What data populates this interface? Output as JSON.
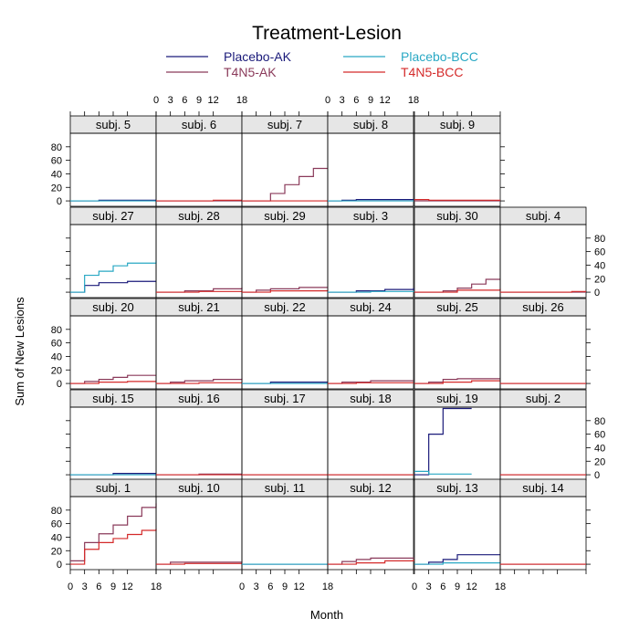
{
  "chart_data": {
    "type": "line",
    "title": "Treatment-Lesion",
    "xlabel": "Month",
    "ylabel": "Sum of New Lesions",
    "xlim": [
      0,
      18
    ],
    "ylim": [
      -8,
      100
    ],
    "xticks": [
      0,
      3,
      6,
      9,
      12,
      18
    ],
    "xtick_labels": [
      "0",
      "3",
      "6",
      "9",
      "12",
      "18"
    ],
    "yticks": [
      0,
      20,
      40,
      60,
      80
    ],
    "ytick_labels": [
      "0",
      "20",
      "40",
      "60",
      "80"
    ],
    "legend": [
      {
        "name": "Placebo-AK",
        "color": "#1a1a7a"
      },
      {
        "name": "Placebo-BCC",
        "color": "#29a8c4"
      },
      {
        "name": "T4N5-AK",
        "color": "#8a3a5a"
      },
      {
        "name": "T4N5-BCC",
        "color": "#d42a2a"
      }
    ],
    "step_lines": true,
    "panels": [
      {
        "label": "subj. 5",
        "series": [
          {
            "name": "Placebo-AK",
            "x": [
              0,
              6,
              18
            ],
            "y": [
              0,
              1,
              1
            ]
          },
          {
            "name": "Placebo-BCC",
            "x": [
              0,
              18
            ],
            "y": [
              0,
              0
            ]
          }
        ]
      },
      {
        "label": "subj. 6",
        "series": [
          {
            "name": "T4N5-AK",
            "x": [
              0,
              18
            ],
            "y": [
              0,
              0
            ]
          },
          {
            "name": "T4N5-BCC",
            "x": [
              0,
              12,
              18
            ],
            "y": [
              0,
              1,
              1
            ]
          }
        ]
      },
      {
        "label": "subj. 7",
        "series": [
          {
            "name": "T4N5-AK",
            "x": [
              0,
              6,
              9,
              12,
              15,
              18
            ],
            "y": [
              0,
              11,
              24,
              36,
              48,
              48
            ]
          },
          {
            "name": "T4N5-BCC",
            "x": [
              0,
              18
            ],
            "y": [
              0,
              0
            ]
          }
        ]
      },
      {
        "label": "subj. 8",
        "series": [
          {
            "name": "Placebo-AK",
            "x": [
              0,
              3,
              6,
              18
            ],
            "y": [
              0,
              1,
              2,
              2
            ]
          },
          {
            "name": "Placebo-BCC",
            "x": [
              0,
              18
            ],
            "y": [
              0,
              0
            ]
          }
        ]
      },
      {
        "label": "subj. 9",
        "series": [
          {
            "name": "T4N5-AK",
            "x": [
              0,
              18
            ],
            "y": [
              0,
              0
            ]
          },
          {
            "name": "T4N5-BCC",
            "x": [
              0,
              3,
              18
            ],
            "y": [
              2,
              1,
              1
            ]
          }
        ]
      },
      {
        "label": "subj. 27",
        "series": [
          {
            "name": "Placebo-AK",
            "x": [
              0,
              3,
              6,
              12,
              18
            ],
            "y": [
              0,
              10,
              14,
              16,
              16
            ]
          },
          {
            "name": "Placebo-BCC",
            "x": [
              0,
              3,
              6,
              9,
              12,
              18
            ],
            "y": [
              0,
              25,
              31,
              39,
              43,
              47
            ]
          }
        ]
      },
      {
        "label": "subj. 28",
        "series": [
          {
            "name": "T4N5-AK",
            "x": [
              0,
              6,
              12,
              18
            ],
            "y": [
              0,
              2,
              5,
              7
            ]
          },
          {
            "name": "T4N5-BCC",
            "x": [
              0,
              9,
              18
            ],
            "y": [
              0,
              1,
              3
            ]
          }
        ]
      },
      {
        "label": "subj. 29",
        "series": [
          {
            "name": "T4N5-AK",
            "x": [
              0,
              3,
              6,
              12,
              18
            ],
            "y": [
              0,
              3,
              5,
              7,
              7
            ]
          },
          {
            "name": "T4N5-BCC",
            "x": [
              0,
              6,
              18
            ],
            "y": [
              0,
              2,
              3
            ]
          }
        ]
      },
      {
        "label": "subj. 3",
        "series": [
          {
            "name": "Placebo-AK",
            "x": [
              0,
              6,
              12,
              18
            ],
            "y": [
              0,
              2,
              4,
              6
            ]
          },
          {
            "name": "Placebo-BCC",
            "x": [
              0,
              9,
              18
            ],
            "y": [
              0,
              1,
              2
            ]
          }
        ]
      },
      {
        "label": "subj. 30",
        "series": [
          {
            "name": "T4N5-AK",
            "x": [
              0,
              6,
              9,
              12,
              15,
              18
            ],
            "y": [
              0,
              2,
              6,
              12,
              19,
              19
            ]
          },
          {
            "name": "T4N5-BCC",
            "x": [
              0,
              9,
              18
            ],
            "y": [
              0,
              3,
              5
            ]
          }
        ]
      },
      {
        "label": "subj. 4",
        "series": [
          {
            "name": "T4N5-AK",
            "x": [
              0,
              18
            ],
            "y": [
              0,
              0
            ]
          },
          {
            "name": "T4N5-BCC",
            "x": [
              0,
              15,
              18
            ],
            "y": [
              0,
              1,
              1
            ]
          }
        ]
      },
      {
        "label": "subj. 20",
        "series": [
          {
            "name": "T4N5-AK",
            "x": [
              0,
              3,
              6,
              9,
              12,
              18
            ],
            "y": [
              0,
              3,
              6,
              9,
              12,
              12
            ]
          },
          {
            "name": "T4N5-BCC",
            "x": [
              0,
              6,
              12,
              18
            ],
            "y": [
              0,
              2,
              3,
              3
            ]
          }
        ]
      },
      {
        "label": "subj. 21",
        "series": [
          {
            "name": "T4N5-AK",
            "x": [
              0,
              3,
              6,
              12,
              18
            ],
            "y": [
              0,
              2,
              4,
              6,
              7
            ]
          },
          {
            "name": "T4N5-BCC",
            "x": [
              0,
              9,
              18
            ],
            "y": [
              0,
              1,
              2
            ]
          }
        ]
      },
      {
        "label": "subj. 22",
        "series": [
          {
            "name": "Placebo-AK",
            "x": [
              0,
              6,
              18
            ],
            "y": [
              0,
              2,
              2
            ]
          },
          {
            "name": "Placebo-BCC",
            "x": [
              0,
              18
            ],
            "y": [
              0,
              0
            ]
          }
        ]
      },
      {
        "label": "subj. 24",
        "series": [
          {
            "name": "T4N5-AK",
            "x": [
              0,
              3,
              9,
              18
            ],
            "y": [
              0,
              2,
              4,
              4
            ]
          },
          {
            "name": "T4N5-BCC",
            "x": [
              0,
              6,
              18
            ],
            "y": [
              0,
              1,
              1
            ]
          }
        ]
      },
      {
        "label": "subj. 25",
        "series": [
          {
            "name": "T4N5-AK",
            "x": [
              0,
              3,
              6,
              9,
              18
            ],
            "y": [
              0,
              2,
              6,
              7,
              7
            ]
          },
          {
            "name": "T4N5-BCC",
            "x": [
              0,
              6,
              12,
              18
            ],
            "y": [
              0,
              2,
              4,
              4
            ]
          }
        ]
      },
      {
        "label": "subj. 26",
        "series": [
          {
            "name": "T4N5-AK",
            "x": [
              0,
              18
            ],
            "y": [
              0,
              0
            ]
          },
          {
            "name": "T4N5-BCC",
            "x": [
              0,
              18
            ],
            "y": [
              0,
              0
            ]
          }
        ]
      },
      {
        "label": "subj. 15",
        "series": [
          {
            "name": "Placebo-AK",
            "x": [
              0,
              9,
              18
            ],
            "y": [
              0,
              2,
              2
            ]
          },
          {
            "name": "Placebo-BCC",
            "x": [
              0,
              18
            ],
            "y": [
              0,
              0
            ]
          }
        ]
      },
      {
        "label": "subj. 16",
        "series": [
          {
            "name": "T4N5-AK",
            "x": [
              0,
              9,
              18
            ],
            "y": [
              0,
              1,
              1
            ]
          },
          {
            "name": "T4N5-BCC",
            "x": [
              0,
              18
            ],
            "y": [
              0,
              0
            ]
          }
        ]
      },
      {
        "label": "subj. 17",
        "series": [
          {
            "name": "T4N5-AK",
            "x": [
              0,
              18
            ],
            "y": [
              0,
              0
            ]
          },
          {
            "name": "T4N5-BCC",
            "x": [
              0,
              18
            ],
            "y": [
              0,
              0
            ]
          }
        ]
      },
      {
        "label": "subj. 18",
        "series": [
          {
            "name": "T4N5-AK",
            "x": [
              0,
              18
            ],
            "y": [
              0,
              0
            ]
          },
          {
            "name": "T4N5-BCC",
            "x": [
              0,
              18
            ],
            "y": [
              0,
              0
            ]
          }
        ]
      },
      {
        "label": "subj. 19",
        "series": [
          {
            "name": "Placebo-AK",
            "x": [
              0,
              3,
              6,
              12
            ],
            "y": [
              0,
              60,
              98,
              98
            ]
          },
          {
            "name": "Placebo-BCC",
            "x": [
              0,
              3,
              6,
              12
            ],
            "y": [
              5,
              1,
              1,
              1
            ]
          }
        ]
      },
      {
        "label": "subj. 2",
        "series": [
          {
            "name": "T4N5-AK",
            "x": [
              0,
              18
            ],
            "y": [
              0,
              0
            ]
          },
          {
            "name": "T4N5-BCC",
            "x": [
              0,
              18
            ],
            "y": [
              0,
              0
            ]
          }
        ]
      },
      {
        "label": "subj. 1",
        "series": [
          {
            "name": "T4N5-AK",
            "x": [
              0,
              3,
              6,
              9,
              12,
              15,
              18
            ],
            "y": [
              5,
              32,
              45,
              58,
              71,
              84,
              90
            ]
          },
          {
            "name": "T4N5-BCC",
            "x": [
              0,
              3,
              6,
              9,
              12,
              15,
              18
            ],
            "y": [
              0,
              22,
              32,
              38,
              44,
              50,
              52
            ]
          }
        ]
      },
      {
        "label": "subj. 10",
        "series": [
          {
            "name": "T4N5-AK",
            "x": [
              0,
              3,
              18
            ],
            "y": [
              0,
              3,
              3
            ]
          },
          {
            "name": "T4N5-BCC",
            "x": [
              0,
              6,
              18
            ],
            "y": [
              0,
              1,
              1
            ]
          }
        ]
      },
      {
        "label": "subj. 11",
        "series": [
          {
            "name": "Placebo-AK",
            "x": [
              0,
              18
            ],
            "y": [
              0,
              0
            ]
          },
          {
            "name": "Placebo-BCC",
            "x": [
              0,
              18
            ],
            "y": [
              0,
              0
            ]
          }
        ]
      },
      {
        "label": "subj. 12",
        "series": [
          {
            "name": "T4N5-AK",
            "x": [
              0,
              3,
              6,
              9,
              18
            ],
            "y": [
              0,
              4,
              7,
              9,
              10
            ]
          },
          {
            "name": "T4N5-BCC",
            "x": [
              0,
              6,
              12,
              18
            ],
            "y": [
              0,
              2,
              5,
              7
            ]
          }
        ]
      },
      {
        "label": "subj. 13",
        "series": [
          {
            "name": "Placebo-AK",
            "x": [
              0,
              3,
              6,
              9,
              18
            ],
            "y": [
              0,
              3,
              7,
              14,
              14
            ]
          },
          {
            "name": "Placebo-BCC",
            "x": [
              0,
              6,
              18
            ],
            "y": [
              0,
              2,
              3
            ]
          }
        ]
      },
      {
        "label": "subj. 14",
        "series": [
          {
            "name": "T4N5-AK",
            "x": [
              0,
              18
            ],
            "y": [
              0,
              0
            ]
          },
          {
            "name": "T4N5-BCC",
            "x": [
              0,
              18
            ],
            "y": [
              0,
              0
            ]
          }
        ]
      }
    ]
  }
}
